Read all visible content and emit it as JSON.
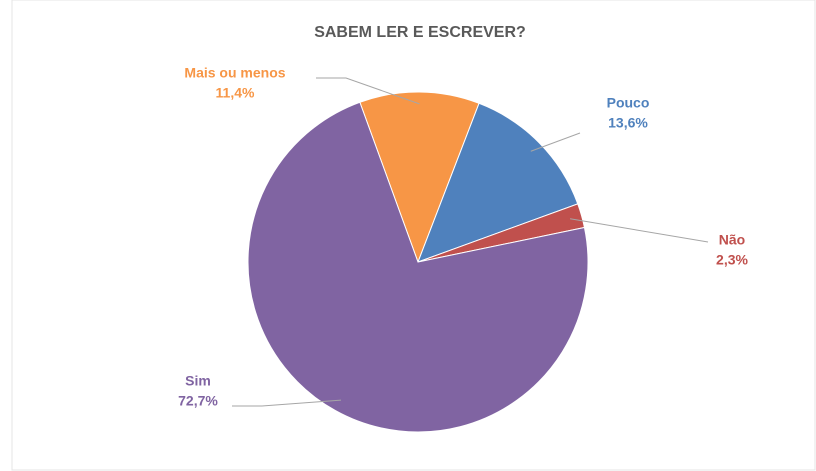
{
  "chart_data": {
    "type": "pie",
    "title": "SABEM LER E ESCREVER?",
    "categories": [
      "Mais ou menos",
      "Pouco",
      "Não",
      "Sim"
    ],
    "values": [
      11.4,
      13.6,
      2.3,
      72.7
    ],
    "value_labels": [
      "11,4%",
      "13,6%",
      "2,3%",
      "72,7%"
    ],
    "colors": [
      "#f79646",
      "#4f81bd",
      "#c0504d",
      "#8064a2"
    ]
  }
}
